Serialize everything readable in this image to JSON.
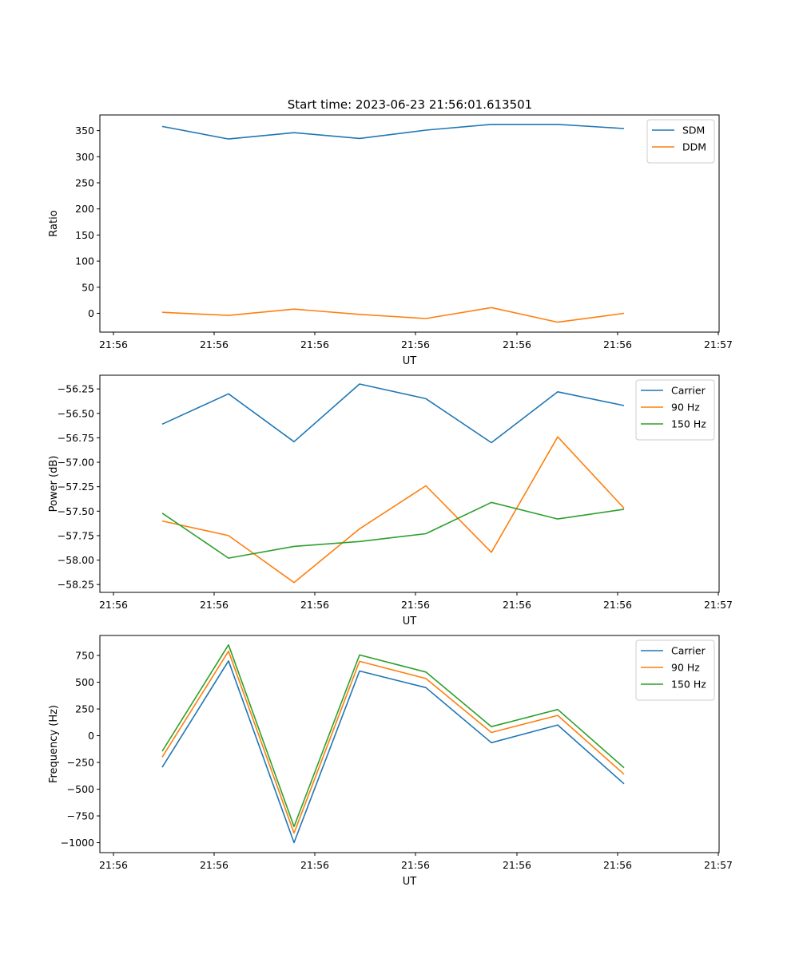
{
  "title": "Start time: 2023-06-23 21:56:01.613501",
  "colors": {
    "blue": "#1f77b4",
    "orange": "#ff7f0e",
    "green": "#2ca02c"
  },
  "chart_data": [
    {
      "type": "line",
      "xlabel": "UT",
      "ylabel": "Ratio",
      "xtick_labels": [
        "21:56",
        "21:56",
        "21:56",
        "21:56",
        "21:56",
        "21:56",
        "21:57"
      ],
      "yticks": [
        0,
        50,
        100,
        150,
        200,
        250,
        300,
        350
      ],
      "ytick_labels": [
        "0",
        "50",
        "100",
        "150",
        "200",
        "250",
        "300",
        "350"
      ],
      "ylim": [
        -36,
        380
      ],
      "legend_position": "upper right",
      "grid": false,
      "series": [
        {
          "name": "SDM",
          "color": "#1f77b4",
          "values": [
            358,
            334,
            346,
            335,
            351,
            362,
            362,
            354
          ]
        },
        {
          "name": "DDM",
          "color": "#ff7f0e",
          "values": [
            2,
            -4,
            8,
            -2,
            -10,
            11,
            -17,
            0
          ]
        }
      ]
    },
    {
      "type": "line",
      "xlabel": "UT",
      "ylabel": "Power (dB)",
      "xtick_labels": [
        "21:56",
        "21:56",
        "21:56",
        "21:56",
        "21:56",
        "21:56",
        "21:57"
      ],
      "yticks": [
        -58.25,
        -58.0,
        -57.75,
        -57.5,
        -57.25,
        -57.0,
        -56.75,
        -56.5,
        -56.25
      ],
      "ytick_labels": [
        "−58.25",
        "−58.00",
        "−57.75",
        "−57.50",
        "−57.25",
        "−57.00",
        "−56.75",
        "−56.50",
        "−56.25"
      ],
      "ylim": [
        -58.33,
        -56.11
      ],
      "legend_position": "upper right",
      "grid": false,
      "series": [
        {
          "name": "Carrier",
          "color": "#1f77b4",
          "values": [
            -56.61,
            -56.3,
            -56.79,
            -56.2,
            -56.35,
            -56.8,
            -56.28,
            -56.42
          ]
        },
        {
          "name": "90 Hz",
          "color": "#ff7f0e",
          "values": [
            -57.6,
            -57.75,
            -58.23,
            -57.68,
            -57.24,
            -57.92,
            -56.74,
            -57.47
          ]
        },
        {
          "name": "150 Hz",
          "color": "#2ca02c",
          "values": [
            -57.52,
            -57.98,
            -57.86,
            -57.81,
            -57.73,
            -57.41,
            -57.58,
            -57.48
          ]
        }
      ]
    },
    {
      "type": "line",
      "xlabel": "UT",
      "ylabel": "Frequency (Hz)",
      "xtick_labels": [
        "21:56",
        "21:56",
        "21:56",
        "21:56",
        "21:56",
        "21:56",
        "21:57"
      ],
      "yticks": [
        -1000,
        -750,
        -500,
        -250,
        0,
        250,
        500,
        750
      ],
      "ytick_labels": [
        "−1000",
        "−750",
        "−500",
        "−250",
        "0",
        "250",
        "500",
        "750"
      ],
      "ylim": [
        -1093,
        937
      ],
      "legend_position": "upper right",
      "grid": false,
      "series": [
        {
          "name": "Carrier",
          "color": "#1f77b4",
          "values": [
            -295,
            700,
            -1000,
            605,
            450,
            -65,
            100,
            -450
          ]
        },
        {
          "name": "90 Hz",
          "color": "#ff7f0e",
          "values": [
            -200,
            790,
            -910,
            695,
            535,
            30,
            190,
            -360
          ]
        },
        {
          "name": "150 Hz",
          "color": "#2ca02c",
          "values": [
            -145,
            850,
            -850,
            755,
            595,
            85,
            245,
            -300
          ]
        }
      ]
    }
  ]
}
